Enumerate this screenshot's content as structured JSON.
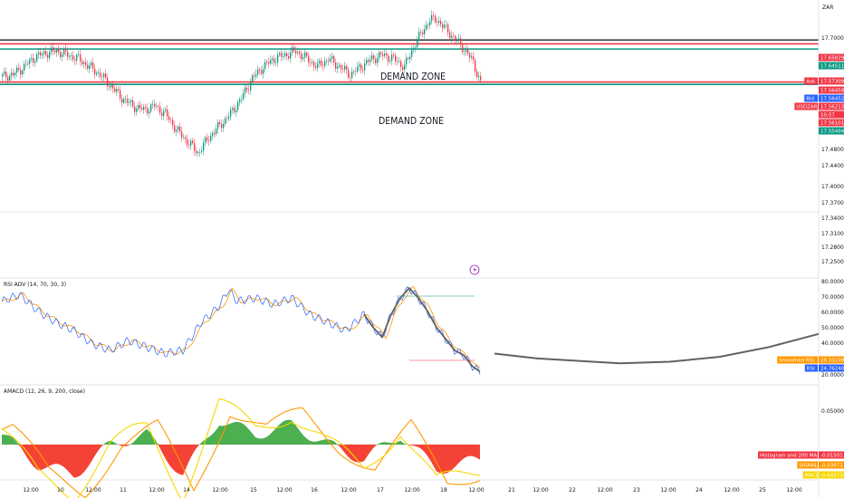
{
  "currency": "ZAR",
  "annotations": {
    "zone_upper": "DEMAND ZONE",
    "zone_lower": "DEMAND ZONE"
  },
  "price_axis": {
    "ticks": [
      "17.70000",
      "17.48000",
      "17.44000",
      "17.40000",
      "17.37000",
      "17.34000",
      "17.31000",
      "17.28000",
      "17.25000"
    ]
  },
  "price_tags": [
    {
      "label": "",
      "value": "17.65829",
      "color": "#f23645"
    },
    {
      "label": "",
      "value": "17.64511",
      "color": "#089981"
    },
    {
      "label": "Ask",
      "value": "17.57309",
      "color": "#f23645"
    },
    {
      "label": "",
      "value": "17.56458",
      "color": "#f23645"
    },
    {
      "label": "Bid",
      "value": "17.56452",
      "color": "#2962ff"
    },
    {
      "label": "USDZAR",
      "value": "17.56213",
      "color": "#f23645"
    },
    {
      "label": "",
      "value": "10:57",
      "color": "#f23645"
    },
    {
      "label": "",
      "value": "17.56101",
      "color": "#f23645"
    },
    {
      "label": "",
      "value": "17.55494",
      "color": "#089981"
    }
  ],
  "rsi_pane": {
    "label": "RSI ADV (14, 70, 30, 3)",
    "ticks": [
      "80.00000",
      "70.00000",
      "60.00000",
      "50.00000",
      "40.00000",
      "20.00000"
    ],
    "tags": [
      {
        "label": "Smoothed RSI",
        "value": "28.33209",
        "color": "#ff9800"
      },
      {
        "label": "RSI",
        "value": "24.76240",
        "color": "#2962ff"
      }
    ]
  },
  "macd_pane": {
    "label": "AMACD (12, 26, 9, 200, close)",
    "ticks": [
      "0.05000"
    ],
    "tags": [
      {
        "label": "Histogram and 200 MA",
        "value": "-0.01501",
        "color": "#f23645"
      },
      {
        "label": "SIGNAL",
        "value": "-0.03071",
        "color": "#ff9800"
      },
      {
        "label": "MACD",
        "value": "-0.04573",
        "color": "#f7d700"
      }
    ]
  },
  "time_axis": {
    "labels": [
      "12:00",
      "10",
      "12:00",
      "11",
      "12:00",
      "14",
      "12:00",
      "15",
      "12:00",
      "16",
      "12:00",
      "17",
      "12:00",
      "18",
      "12:00",
      "21",
      "12:00",
      "22",
      "12:00",
      "23",
      "12:00",
      "24",
      "12:00",
      "25",
      "12:00"
    ]
  },
  "chart_data": {
    "type": "candlestick",
    "symbol": "USDZAR",
    "currency": "ZAR",
    "price_range": [
      17.23,
      17.77
    ],
    "horizontal_levels": [
      {
        "price": 17.668,
        "color": "#424242"
      },
      {
        "price": 17.65829,
        "color": "#f23645"
      },
      {
        "price": 17.64511,
        "color": "#089981"
      },
      {
        "price": 17.56101,
        "color": "#f23645"
      },
      {
        "price": 17.55494,
        "color": "#089981"
      }
    ],
    "close_path": [
      [
        0,
        17.575
      ],
      [
        6,
        17.58
      ],
      [
        12,
        17.6
      ],
      [
        18,
        17.625
      ],
      [
        24,
        17.635
      ],
      [
        30,
        17.64
      ],
      [
        36,
        17.63
      ],
      [
        42,
        17.62
      ],
      [
        48,
        17.6
      ],
      [
        54,
        17.58
      ],
      [
        60,
        17.55
      ],
      [
        66,
        17.52
      ],
      [
        72,
        17.5
      ],
      [
        78,
        17.49
      ],
      [
        84,
        17.5
      ],
      [
        90,
        17.48
      ],
      [
        96,
        17.44
      ],
      [
        102,
        17.41
      ],
      [
        108,
        17.38
      ],
      [
        114,
        17.42
      ],
      [
        120,
        17.45
      ],
      [
        126,
        17.48
      ],
      [
        132,
        17.52
      ],
      [
        138,
        17.57
      ],
      [
        144,
        17.6
      ],
      [
        150,
        17.62
      ],
      [
        156,
        17.63
      ],
      [
        162,
        17.64
      ],
      [
        168,
        17.62
      ],
      [
        174,
        17.6
      ],
      [
        180,
        17.62
      ],
      [
        186,
        17.6
      ],
      [
        192,
        17.58
      ],
      [
        198,
        17.6
      ],
      [
        204,
        17.62
      ],
      [
        210,
        17.63
      ],
      [
        216,
        17.62
      ],
      [
        222,
        17.6
      ],
      [
        228,
        17.66
      ],
      [
        232,
        17.69
      ],
      [
        236,
        17.72
      ],
      [
        240,
        17.72
      ],
      [
        244,
        17.7
      ],
      [
        248,
        17.68
      ],
      [
        252,
        17.66
      ],
      [
        256,
        17.64
      ],
      [
        260,
        17.61
      ],
      [
        264,
        17.56
      ]
    ],
    "rsi_path": [
      [
        0,
        68
      ],
      [
        10,
        72
      ],
      [
        20,
        62
      ],
      [
        30,
        55
      ],
      [
        40,
        50
      ],
      [
        50,
        42
      ],
      [
        60,
        38
      ],
      [
        70,
        44
      ],
      [
        80,
        40
      ],
      [
        90,
        36
      ],
      [
        100,
        38
      ],
      [
        110,
        55
      ],
      [
        120,
        65
      ],
      [
        125,
        75
      ],
      [
        130,
        68
      ],
      [
        140,
        70
      ],
      [
        150,
        66
      ],
      [
        160,
        70
      ],
      [
        170,
        60
      ],
      [
        180,
        55
      ],
      [
        190,
        50
      ],
      [
        200,
        60
      ],
      [
        205,
        52
      ],
      [
        210,
        46
      ],
      [
        215,
        60
      ],
      [
        220,
        70
      ],
      [
        225,
        76
      ],
      [
        230,
        70
      ],
      [
        235,
        62
      ],
      [
        240,
        52
      ],
      [
        245,
        45
      ],
      [
        250,
        38
      ],
      [
        255,
        35
      ],
      [
        260,
        28
      ],
      [
        264,
        25
      ]
    ],
    "smoothed_rsi_projection": [
      [
        264,
        36
      ],
      [
        290,
        33
      ],
      [
        340,
        30
      ],
      [
        370,
        31
      ],
      [
        400,
        34
      ],
      [
        430,
        40
      ],
      [
        460,
        48
      ]
    ],
    "macd_histogram": [
      [
        0,
        0.01
      ],
      [
        20,
        -0.02
      ],
      [
        40,
        -0.03
      ],
      [
        60,
        0.0
      ],
      [
        80,
        0.01
      ],
      [
        100,
        -0.03
      ],
      [
        120,
        0.025
      ],
      [
        140,
        0.01
      ],
      [
        160,
        0.02
      ],
      [
        180,
        0.0
      ],
      [
        200,
        -0.015
      ],
      [
        220,
        0.01
      ],
      [
        240,
        -0.025
      ],
      [
        264,
        -0.015
      ]
    ]
  }
}
